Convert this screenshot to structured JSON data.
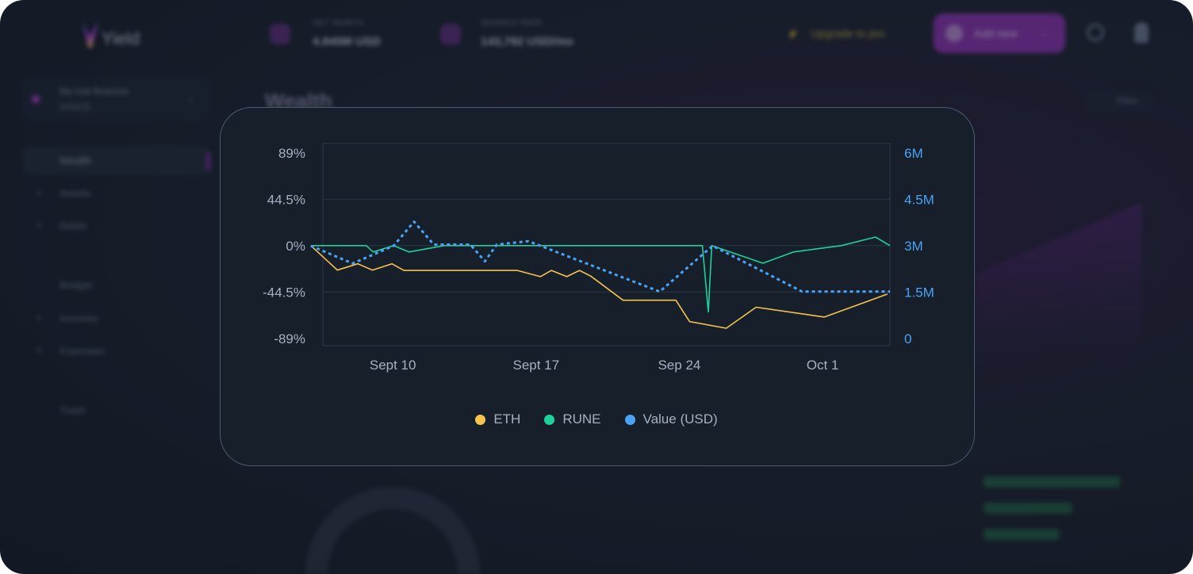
{
  "app": {
    "logo_text": "Yield",
    "net_worth": {
      "label": "NET WORTH",
      "value": "4.845M USD"
    },
    "savings_rate": {
      "label": "SAVINGS RATE",
      "value": "143,792 USD/mo"
    },
    "upgrade_label": "Upgrade to pro",
    "add_new_label": "Add new",
    "space": {
      "title": "My real finances",
      "subtitle": "SPACE"
    },
    "sidebar": [
      {
        "label": "Wealth",
        "active": true
      },
      {
        "label": "Assets"
      },
      {
        "label": "Debts"
      },
      {
        "label": "Budget"
      },
      {
        "label": "Incomes"
      },
      {
        "label": "Expenses"
      },
      {
        "label": "Trash"
      }
    ],
    "page_title": "Wealth",
    "filter_label": "Filter"
  },
  "chart_data": {
    "type": "line",
    "xlim": [
      "09-06 14:00",
      "10-04 07:00"
    ],
    "x_ticks": [
      {
        "at": "09-10 00:00",
        "label": "Sept 10"
      },
      {
        "at": "09-17 00:00",
        "label": "Sept 17"
      },
      {
        "at": "09-24 00:00",
        "label": "Sep 24"
      },
      {
        "at": "10-01 00:00",
        "label": "Oct 1"
      }
    ],
    "y_left": {
      "lim": [
        -96,
        98
      ],
      "ticks": [
        89,
        44.5,
        0,
        -44.5,
        -89
      ],
      "tick_labels": [
        "89%",
        "44.5%",
        "0%",
        "-44.5%",
        "-89%"
      ]
    },
    "y_right": {
      "lim": [
        -0.23,
        6.31
      ],
      "ticks": [
        6,
        4.5,
        3,
        1.5,
        0
      ],
      "tick_labels": [
        "6M",
        "4.5M",
        "3M",
        "1.5M",
        "0"
      ],
      "color": "#4aa3f5"
    },
    "grid": true,
    "legend_position": "bottom",
    "series": [
      {
        "name": "ETH",
        "axis": "left",
        "color": "#f5c451",
        "style": "solid",
        "points": [
          [
            "09-06 00:00",
            0
          ],
          [
            "09-07 07:00",
            -23.5
          ],
          [
            "09-08 07:00",
            -17.4
          ],
          [
            "09-09 00:00",
            -23.5
          ],
          [
            "09-09 23:00",
            -17.4
          ],
          [
            "09-10 13:00",
            -23.8
          ],
          [
            "09-16 02:00",
            -23.8
          ],
          [
            "09-17 05:00",
            -29.7
          ],
          [
            "09-17 18:00",
            -23.8
          ],
          [
            "09-18 12:00",
            -29.7
          ],
          [
            "09-19 03:00",
            -23.8
          ],
          [
            "09-19 16:00",
            -29.2
          ],
          [
            "09-21 06:00",
            -52.4
          ],
          [
            "09-23 20:00",
            -52.4
          ],
          [
            "09-24 12:00",
            -72.9
          ],
          [
            "09-26 07:00",
            -79.3
          ],
          [
            "09-27 18:00",
            -59.1
          ],
          [
            "10-01 02:00",
            -68.5
          ],
          [
            "10-04 04:00",
            -46.5
          ]
        ]
      },
      {
        "name": "RUNE",
        "axis": "left",
        "color": "#1fd19a",
        "style": "solid",
        "points": [
          [
            "09-06 00:00",
            0
          ],
          [
            "09-08 17:00",
            0
          ],
          [
            "09-09 01:00",
            -6.1
          ],
          [
            "09-10 01:00",
            0
          ],
          [
            "09-10 19:00",
            -6.1
          ],
          [
            "09-12 12:00",
            0
          ],
          [
            "09-25 03:00",
            0
          ],
          [
            "09-25 10:00",
            -63.7
          ],
          [
            "09-25 14:00",
            0
          ],
          [
            "09-28 02:00",
            -16.9
          ],
          [
            "09-29 14:00",
            -6.1
          ],
          [
            "10-01 22:00",
            0
          ],
          [
            "10-03 14:00",
            8.2
          ],
          [
            "10-04 07:00",
            0
          ]
        ]
      },
      {
        "name": "Value (USD)",
        "axis": "right",
        "color": "#4aa3f5",
        "style": "dotted",
        "points": [
          [
            "09-06 00:00",
            3.0
          ],
          [
            "09-08 01:00",
            2.43
          ],
          [
            "09-10 01:00",
            3.0
          ],
          [
            "09-11 01:00",
            3.78
          ],
          [
            "09-12 00:00",
            3.04
          ],
          [
            "09-13 19:00",
            3.04
          ],
          [
            "09-14 12:00",
            2.5
          ],
          [
            "09-15 02:00",
            3.04
          ],
          [
            "09-16 15:00",
            3.15
          ],
          [
            "09-23 01:00",
            1.52
          ],
          [
            "09-25 15:00",
            3.0
          ],
          [
            "09-30 00:00",
            1.52
          ],
          [
            "10-04 07:00",
            1.52
          ]
        ]
      }
    ]
  }
}
